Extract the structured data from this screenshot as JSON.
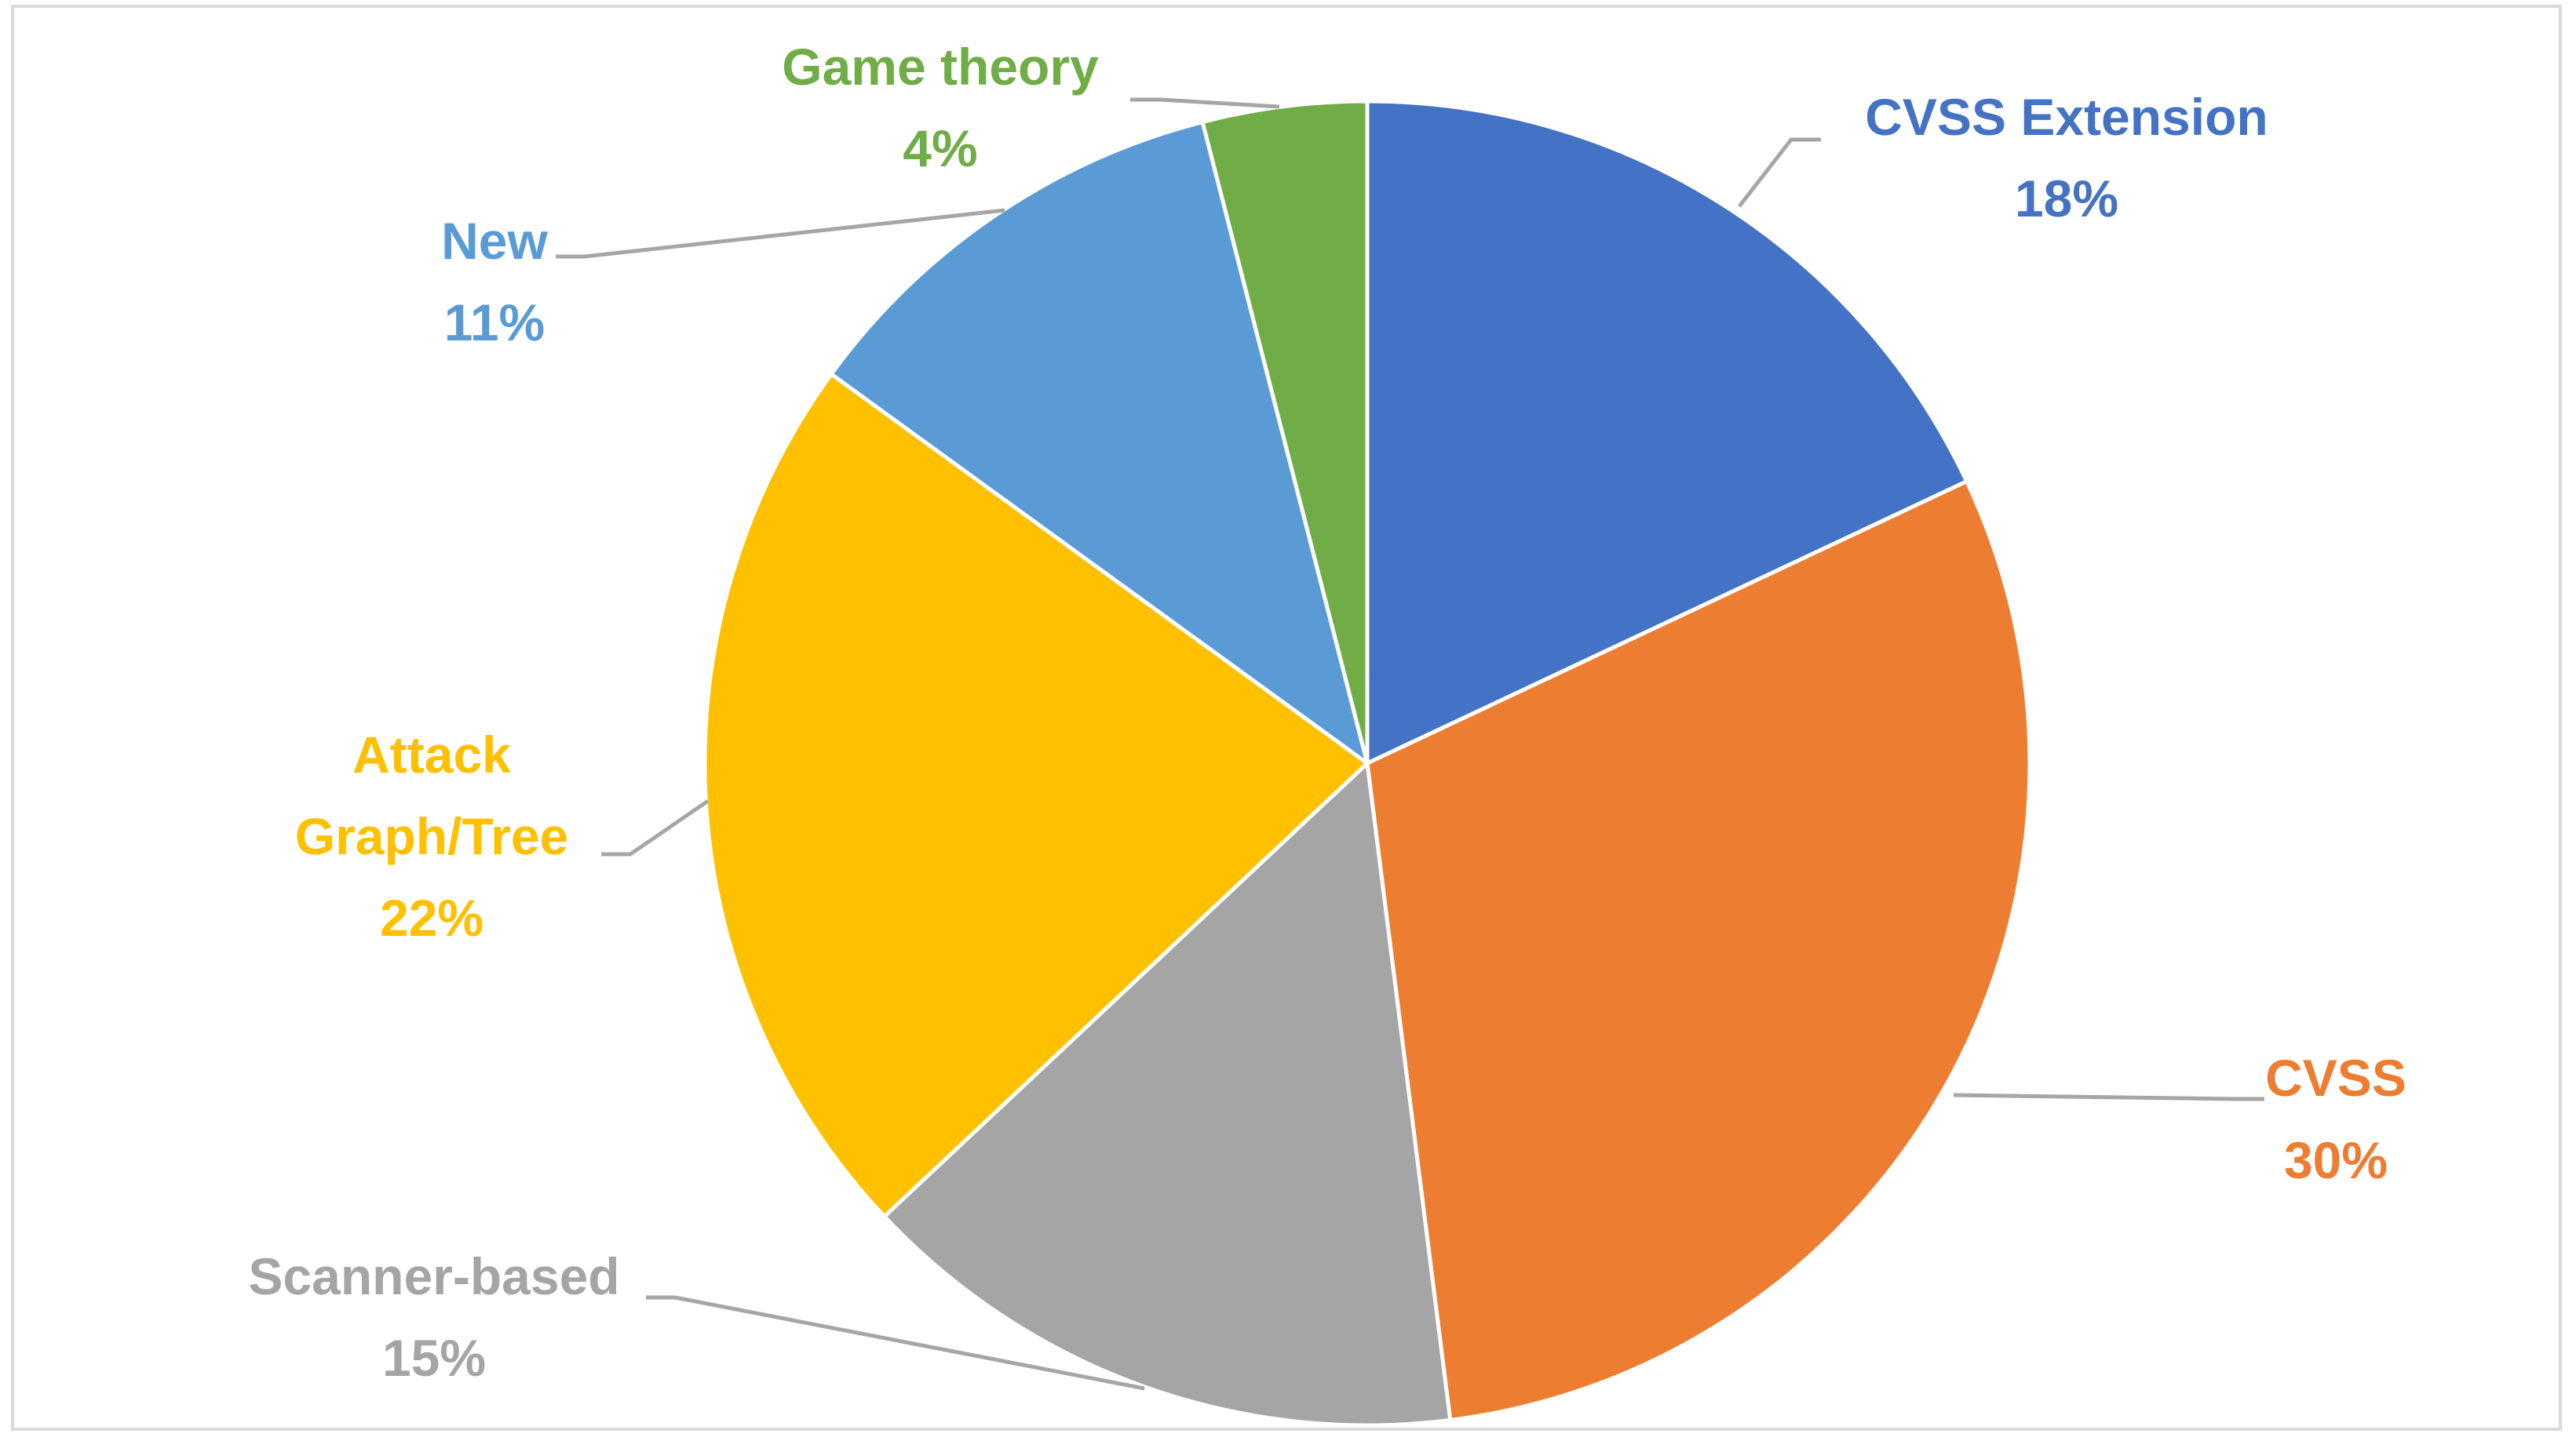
{
  "chart_data": {
    "type": "pie",
    "title": "",
    "start_angle_deg": 0,
    "direction": "clockwise",
    "slices": [
      {
        "name": "CVSS Extension",
        "value": 18,
        "label": "18%",
        "color": "#4472C4",
        "label_color": "#4472C4"
      },
      {
        "name": "CVSS",
        "value": 30,
        "label": "30%",
        "color": "#ED7D31",
        "label_color": "#ED7D31"
      },
      {
        "name": "Scanner-based",
        "value": 15,
        "label": "15%",
        "color": "#A5A5A5",
        "label_color": "#A5A5A5"
      },
      {
        "name": "Attack Graph/Tree",
        "value": 22,
        "label": "22%",
        "color": "#FFC000",
        "label_color": "#FFC000"
      },
      {
        "name": "New",
        "value": 11,
        "label": "11%",
        "color": "#5B9BD5",
        "label_color": "#5B9BD5"
      },
      {
        "name": "Game theory",
        "value": 4,
        "label": "4%",
        "color": "#70AD47",
        "label_color": "#70AD47"
      }
    ],
    "legend": "none",
    "data_labels": "outside with leader lines",
    "leader_line_color": "#A6A6A6"
  }
}
